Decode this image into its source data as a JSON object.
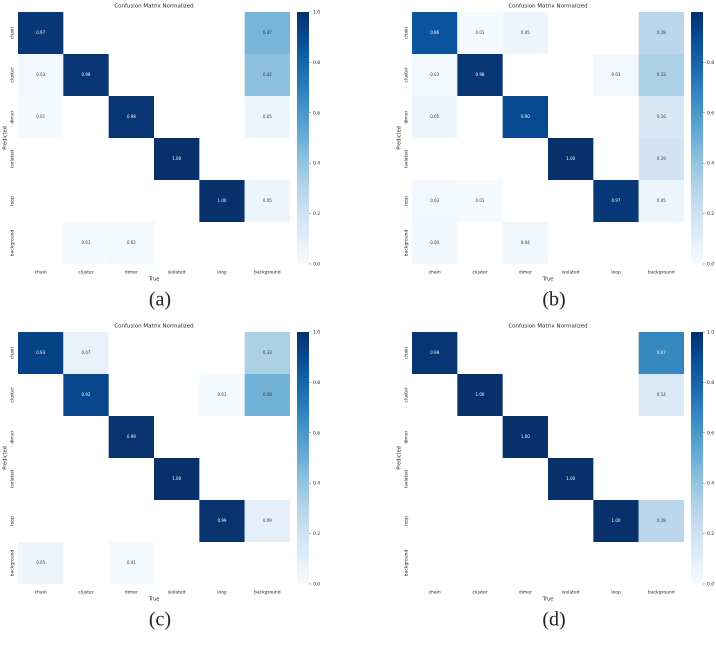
{
  "chart_data": [
    {
      "type": "heatmap",
      "title": "Confusion Matrix Normalized",
      "xlabel": "True",
      "ylabel": "Predicted",
      "caption": "(a)",
      "cmap": "Blues",
      "categories": [
        "chain",
        "cluster",
        "dimer",
        "isolated",
        "loop",
        "background"
      ],
      "values": [
        [
          0.97,
          null,
          null,
          null,
          null,
          0.47
        ],
        [
          0.03,
          0.98,
          null,
          null,
          null,
          0.42
        ],
        [
          0.01,
          null,
          0.98,
          null,
          null,
          0.05
        ],
        [
          null,
          null,
          null,
          1,
          null,
          null
        ],
        [
          null,
          null,
          null,
          null,
          1,
          0.05
        ],
        [
          null,
          0.01,
          0.02,
          null,
          null,
          null
        ]
      ],
      "value_labels": [
        [
          "0.97",
          null,
          null,
          null,
          null,
          "0.47"
        ],
        [
          "0.03",
          "0.98",
          null,
          null,
          null,
          "0.42"
        ],
        [
          "0.01",
          null,
          "0.98",
          null,
          null,
          "0.05"
        ],
        [
          null,
          null,
          null,
          "1.00",
          null,
          null
        ],
        [
          null,
          null,
          null,
          null,
          "1.00",
          "0.05"
        ],
        [
          null,
          "0.01",
          "0.02",
          null,
          null,
          null
        ]
      ],
      "zlim": [
        0,
        1
      ],
      "zticks": [
        {
          "value": 0,
          "label": "0.0"
        },
        {
          "value": 0.2,
          "label": "0.2"
        },
        {
          "value": 0.4,
          "label": "0.4"
        },
        {
          "value": 0.6,
          "label": "0.6"
        },
        {
          "value": 0.8,
          "label": "0.8"
        },
        {
          "value": 1,
          "label": "1.0"
        }
      ]
    },
    {
      "type": "heatmap",
      "title": "Confusion Matrix Normalized",
      "xlabel": "True",
      "ylabel": "Predicted",
      "caption": "(b)",
      "cmap": "Blues",
      "categories": [
        "chain",
        "cluster",
        "dimer",
        "isolated",
        "loop",
        "background"
      ],
      "values": [
        [
          0.86,
          0.01,
          0.05,
          null,
          null,
          0.28
        ],
        [
          0.03,
          0.98,
          null,
          null,
          0.03,
          0.33
        ],
        [
          0.05,
          null,
          0.9,
          null,
          null,
          0.16
        ],
        [
          null,
          null,
          null,
          1,
          null,
          0.19
        ],
        [
          0.03,
          0.01,
          null,
          null,
          0.97,
          0.05
        ],
        [
          0.04,
          null,
          0.04,
          null,
          null,
          null
        ]
      ],
      "value_labels": [
        [
          "0.86",
          "0.01",
          "0.05",
          null,
          null,
          "0.28"
        ],
        [
          "0.03",
          "0.98",
          null,
          null,
          "0.03",
          "0.33"
        ],
        [
          "0.05",
          null,
          "0.90",
          null,
          null,
          "0.16"
        ],
        [
          null,
          null,
          null,
          "1.00",
          null,
          "0.19"
        ],
        [
          "0.03",
          "0.01",
          null,
          null,
          "0.97",
          "0.05"
        ],
        [
          "0.04",
          null,
          "0.04",
          null,
          null,
          null
        ]
      ],
      "zlim": [
        0,
        1
      ],
      "zticks": [
        {
          "value": 0,
          "label": "0.0"
        },
        {
          "value": 0.2,
          "label": "0.2"
        },
        {
          "value": 0.4,
          "label": "0.4"
        },
        {
          "value": 0.6,
          "label": "0.6"
        },
        {
          "value": 0.8,
          "label": "0.8"
        }
      ]
    },
    {
      "type": "heatmap",
      "title": "Confusion Matrix Normalized",
      "xlabel": "True",
      "ylabel": "Predicted",
      "caption": "(c)",
      "cmap": "Blues",
      "categories": [
        "chain",
        "cluster",
        "dimer",
        "isolated",
        "loop",
        "background"
      ],
      "values": [
        [
          0.93,
          0.07,
          null,
          null,
          null,
          0.33
        ],
        [
          null,
          0.92,
          null,
          null,
          0.01,
          0.48
        ],
        [
          null,
          null,
          0.99,
          null,
          null,
          null
        ],
        [
          null,
          null,
          null,
          1,
          null,
          null
        ],
        [
          null,
          null,
          null,
          null,
          0.99,
          0.09
        ],
        [
          0.05,
          null,
          0.01,
          null,
          null,
          null
        ]
      ],
      "value_labels": [
        [
          "0.93",
          "0.07",
          null,
          null,
          null,
          "0.33"
        ],
        [
          null,
          "0.92",
          null,
          null,
          "0.01",
          "0.48"
        ],
        [
          null,
          null,
          "0.99",
          null,
          null,
          null
        ],
        [
          null,
          null,
          null,
          "1.00",
          null,
          null
        ],
        [
          null,
          null,
          null,
          null,
          "0.99",
          "0.09"
        ],
        [
          "0.05",
          null,
          "0.01",
          null,
          null,
          null
        ]
      ],
      "zlim": [
        0,
        1
      ],
      "zticks": [
        {
          "value": 0,
          "label": "0.0"
        },
        {
          "value": 0.2,
          "label": "0.2"
        },
        {
          "value": 0.4,
          "label": "0.4"
        },
        {
          "value": 0.6,
          "label": "0.6"
        },
        {
          "value": 0.8,
          "label": "0.8"
        },
        {
          "value": 1,
          "label": "1.0"
        }
      ]
    },
    {
      "type": "heatmap",
      "title": "Confusion Matrix Normalized",
      "xlabel": "True",
      "ylabel": "Predicted",
      "caption": "(d)",
      "cmap": "Blues",
      "categories": [
        "chain",
        "cluster",
        "dimer",
        "isolated",
        "loop",
        "background"
      ],
      "values": [
        [
          0.98,
          null,
          null,
          null,
          null,
          0.67
        ],
        [
          null,
          1,
          null,
          null,
          null,
          0.14
        ],
        [
          null,
          null,
          1,
          null,
          null,
          null
        ],
        [
          null,
          null,
          null,
          1,
          null,
          null
        ],
        [
          null,
          null,
          null,
          null,
          1,
          0.28
        ],
        [
          null,
          null,
          null,
          null,
          null,
          null
        ]
      ],
      "value_labels": [
        [
          "0.98",
          null,
          null,
          null,
          null,
          "0.67"
        ],
        [
          null,
          "1.00",
          null,
          null,
          null,
          "0.14"
        ],
        [
          null,
          null,
          "1.00",
          null,
          null,
          null
        ],
        [
          null,
          null,
          null,
          "1.00",
          null,
          null
        ],
        [
          null,
          null,
          null,
          null,
          "1.00",
          "0.28"
        ],
        [
          null,
          null,
          null,
          null,
          null,
          null
        ]
      ],
      "zlim": [
        0,
        1
      ],
      "zticks": [
        {
          "value": 0,
          "label": "0.0"
        },
        {
          "value": 0.2,
          "label": "0.2"
        },
        {
          "value": 0.4,
          "label": "0.4"
        },
        {
          "value": 0.6,
          "label": "0.6"
        },
        {
          "value": 0.8,
          "label": "0.8"
        },
        {
          "value": 1,
          "label": "1.0"
        }
      ]
    }
  ]
}
